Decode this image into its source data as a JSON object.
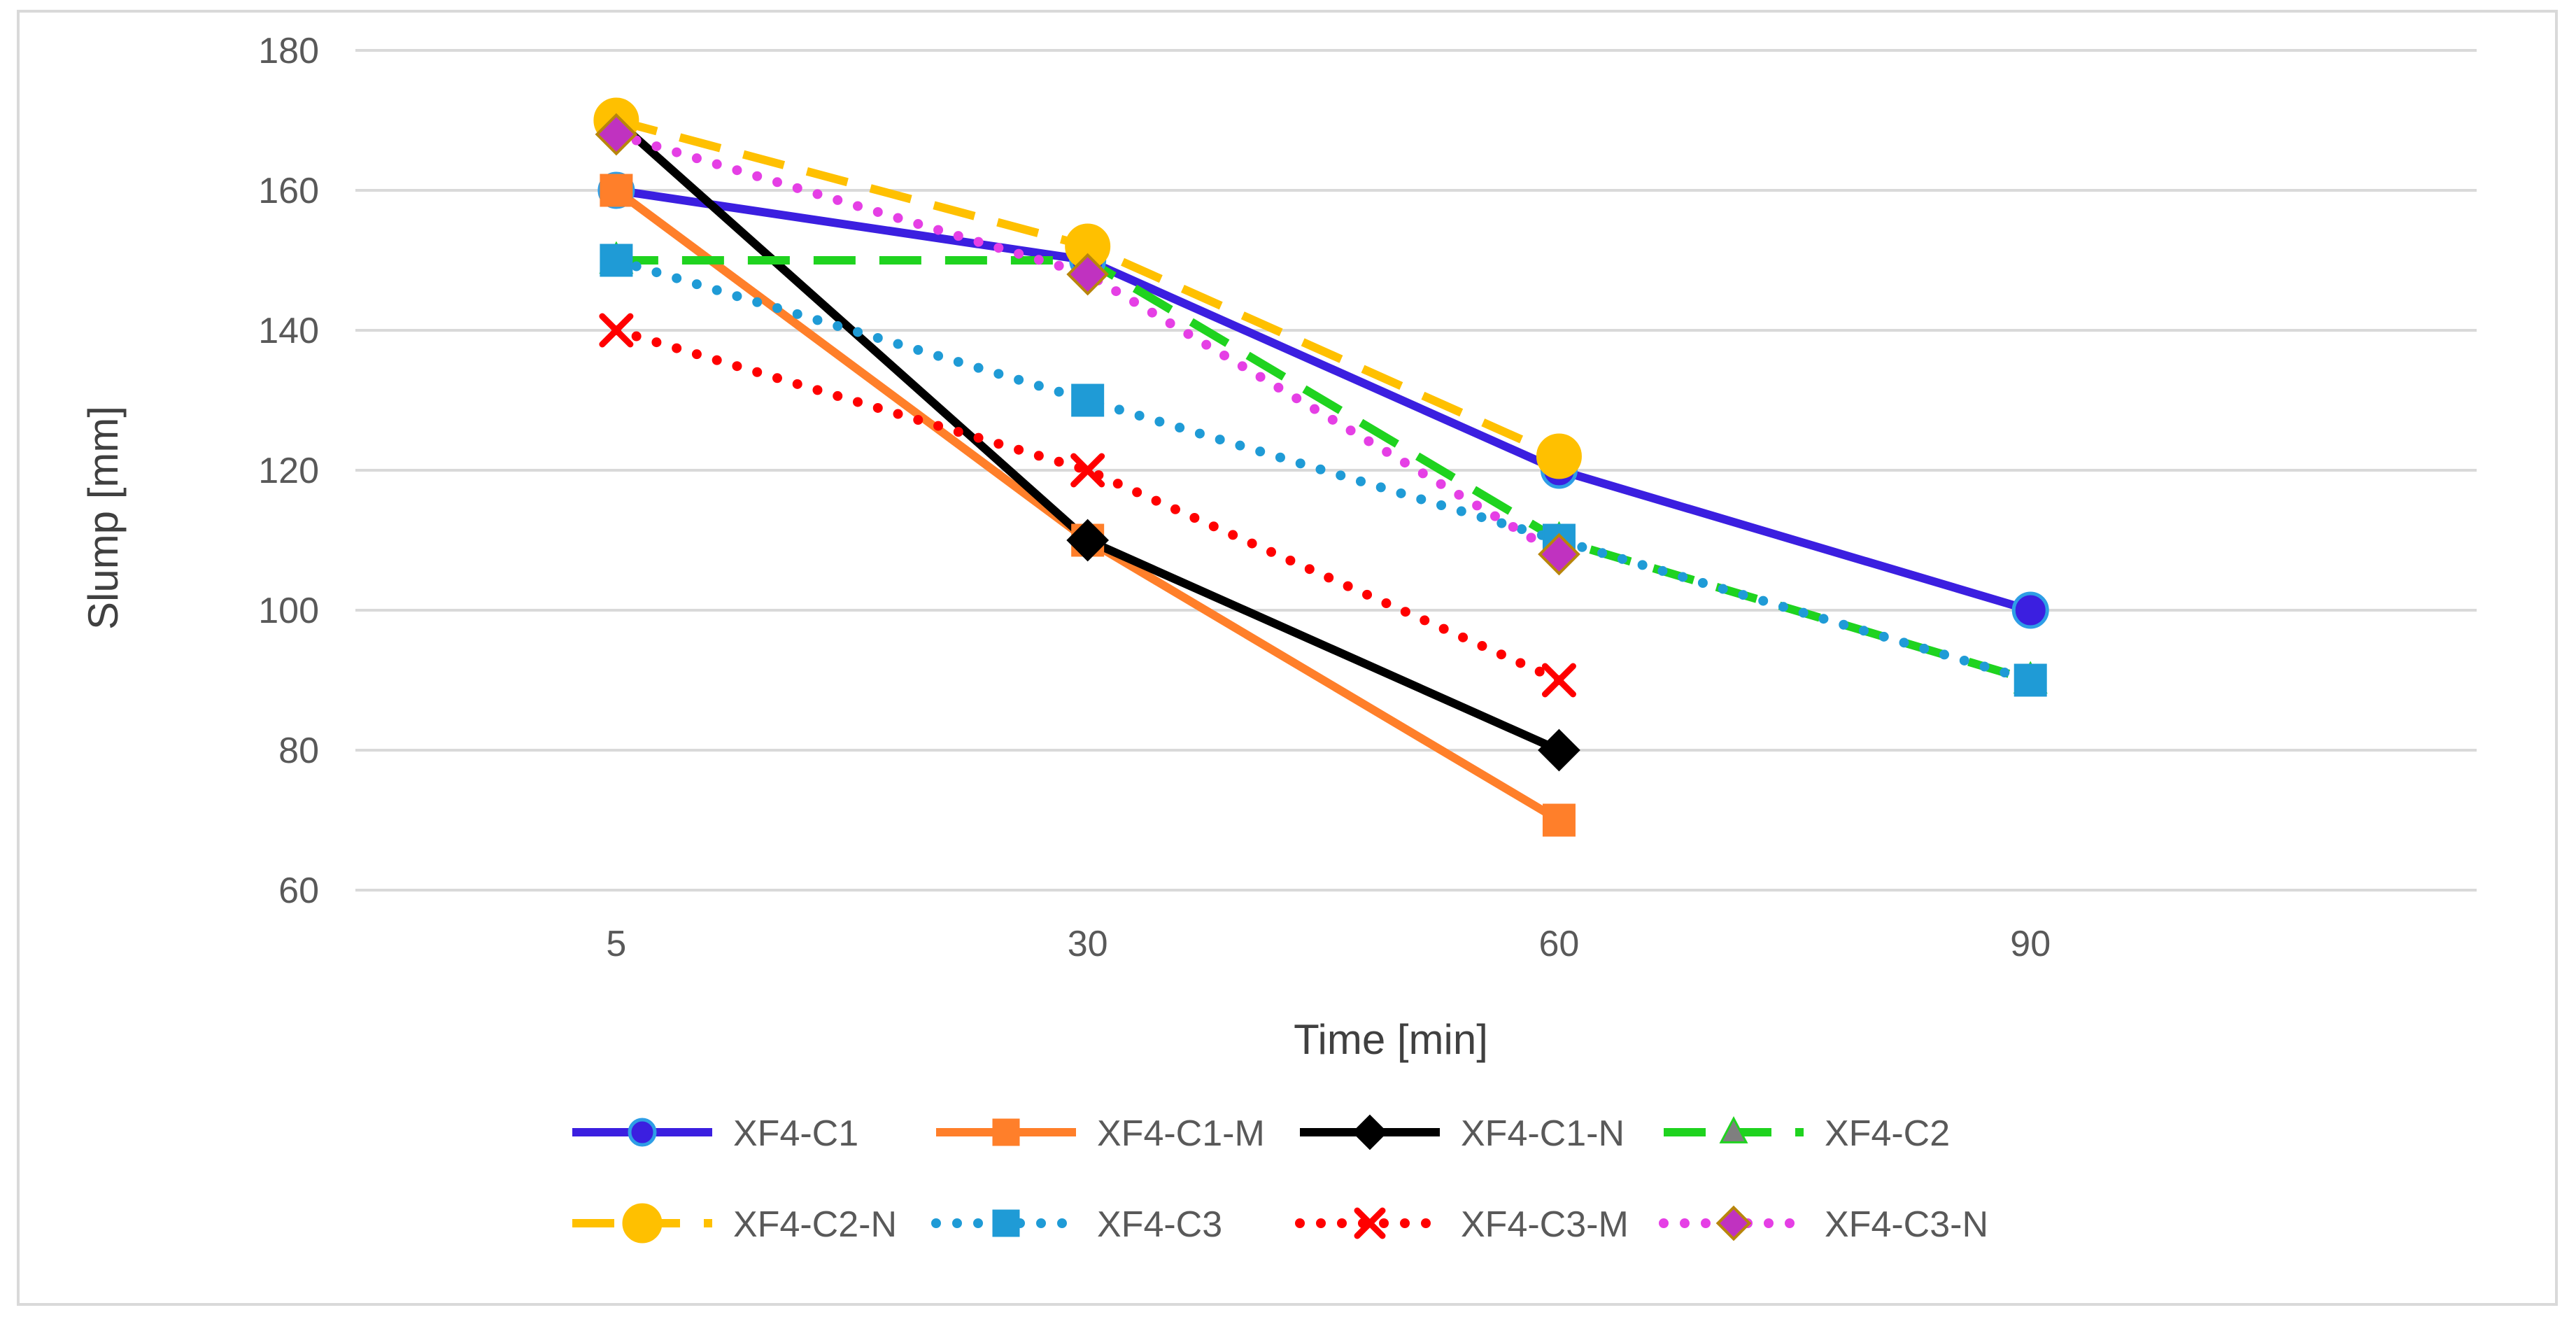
{
  "chart_data": {
    "type": "line",
    "title": "",
    "xlabel": "Time [min]",
    "ylabel": "Slump [mm]",
    "categories": [
      "5",
      "30",
      "60",
      "90"
    ],
    "yticks": [
      "60",
      "80",
      "100",
      "120",
      "140",
      "160",
      "180"
    ],
    "ylim": [
      60,
      180
    ],
    "grid": true,
    "legend_position": "bottom",
    "series": [
      {
        "name": "XF4-C1",
        "values": [
          160,
          150,
          120,
          100
        ],
        "color": "#3b1fe0",
        "dash": "solid",
        "marker": "circle",
        "marker_color": "#3b1fe0",
        "marker_stroke": "#2e9ee6"
      },
      {
        "name": "XF4-C1-M",
        "values": [
          160,
          110,
          70,
          null
        ],
        "color": "#ff7f2a",
        "dash": "solid",
        "marker": "square",
        "marker_color": "#ff7f2a",
        "marker_stroke": "#ff7f2a"
      },
      {
        "name": "XF4-C1-N",
        "values": [
          170,
          110,
          80,
          null
        ],
        "color": "#000000",
        "dash": "solid",
        "marker": "diamond",
        "marker_color": "#000000",
        "marker_stroke": "#000000"
      },
      {
        "name": "XF4-C2",
        "values": [
          150,
          150,
          110,
          90
        ],
        "color": "#1fd31f",
        "dash": "dash",
        "marker": "triangle",
        "marker_color": "#7f7f7f",
        "marker_stroke": "#1fd31f"
      },
      {
        "name": "XF4-C2-N",
        "values": [
          170,
          152,
          122,
          null
        ],
        "color": "#ffc000",
        "dash": "dash",
        "marker": "circle",
        "marker_color": "#ffc000",
        "marker_stroke": "#ffc000"
      },
      {
        "name": "XF4-C3",
        "values": [
          150,
          130,
          110,
          90
        ],
        "color": "#1f9bd6",
        "dash": "dot",
        "marker": "square",
        "marker_color": "#1f9bd6",
        "marker_stroke": "#1f9bd6"
      },
      {
        "name": "XF4-C3-M",
        "values": [
          140,
          120,
          90,
          null
        ],
        "color": "#ff0000",
        "dash": "dot",
        "marker": "x",
        "marker_color": "#ff0000",
        "marker_stroke": "#ff0000"
      },
      {
        "name": "XF4-C3-N",
        "values": [
          168,
          148,
          108,
          null
        ],
        "color": "#e53fe5",
        "dash": "dot",
        "marker": "diamond",
        "marker_color": "#c032c0",
        "marker_stroke": "#b8860b"
      }
    ]
  }
}
